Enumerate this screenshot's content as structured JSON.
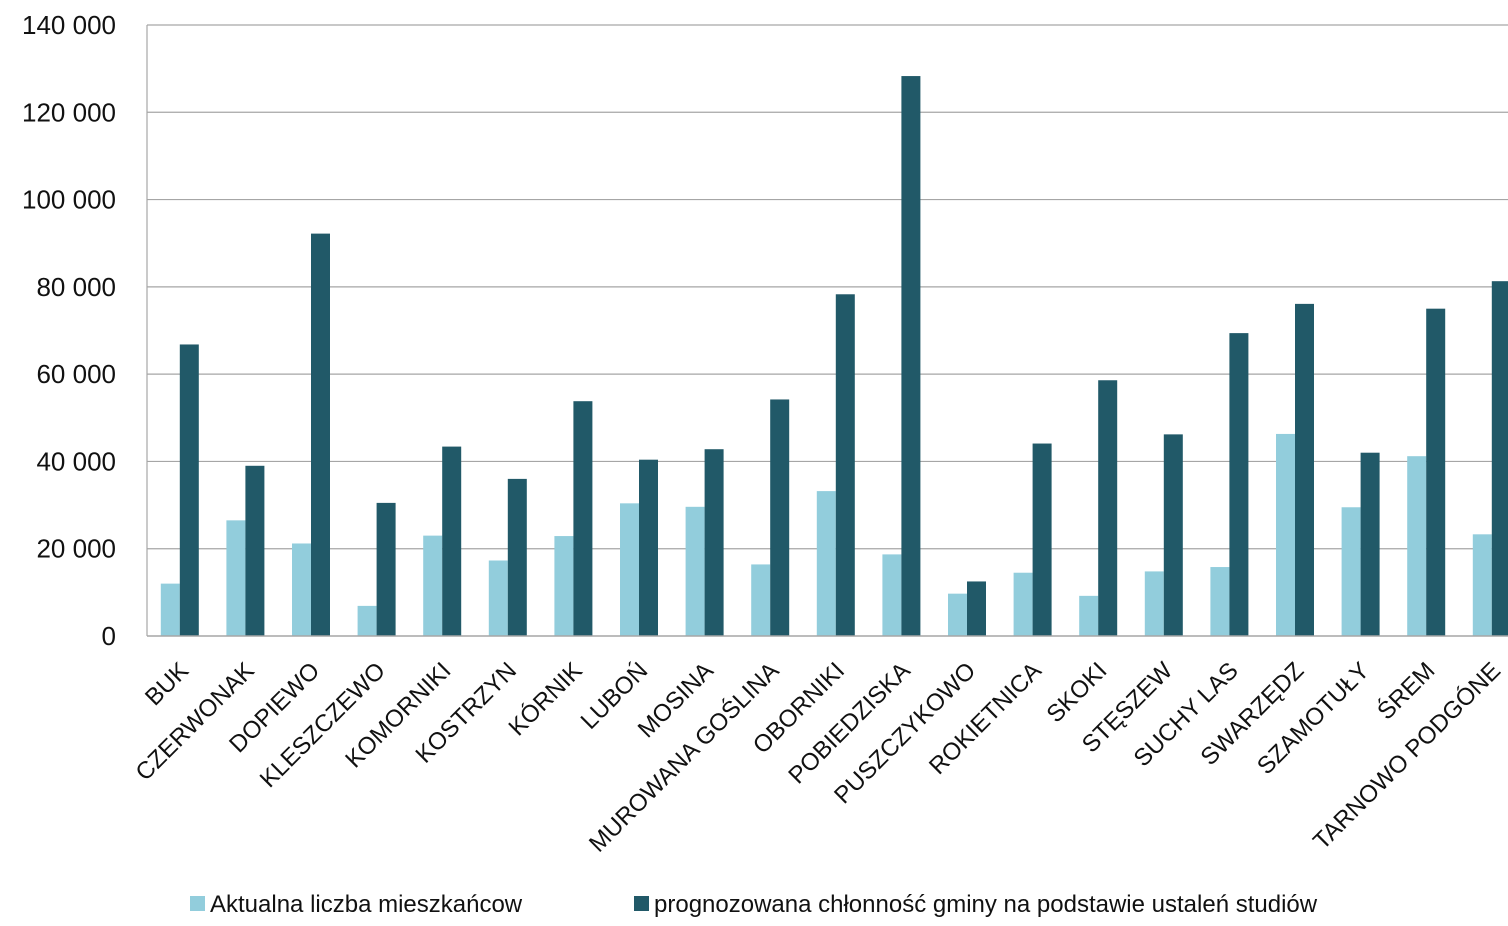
{
  "chart_data": {
    "type": "bar",
    "categories": [
      "BUK",
      "CZERWONAK",
      "DOPIEWO",
      "KLESZCZEWO",
      "KOMORNIKI",
      "KOSTRZYN",
      "KÓRNIK",
      "LUBOŃ",
      "MOSINA",
      "MUROWANA GOŚLINA",
      "OBORNIKI",
      "POBIEDZISKA",
      "PUSZCZYKOWO",
      "ROKIETNICA",
      "SKOKI",
      "STĘSZEW",
      "SUCHY LAS",
      "SWARZĘDZ",
      "SZAMOTUŁY",
      "ŚREM",
      "TARNOWO PODGÓNE"
    ],
    "series": [
      {
        "name": "Aktualna liczba mieszkańcow",
        "color": "#92cddc",
        "values": [
          12000,
          26500,
          21200,
          6900,
          23000,
          17300,
          22900,
          30400,
          29600,
          16400,
          33200,
          18700,
          9700,
          14500,
          9200,
          14800,
          15800,
          46300,
          29500,
          41200,
          23300
        ]
      },
      {
        "name": "prognozowana chłonność gminy na podstawie ustaleń studiów",
        "color": "#215968",
        "values": [
          66800,
          39000,
          92200,
          30500,
          43400,
          36000,
          53800,
          40400,
          42800,
          54200,
          78300,
          128300,
          12500,
          44100,
          58600,
          46200,
          69400,
          76100,
          42000,
          75000,
          81300
        ]
      }
    ],
    "yticks": [
      "0",
      "20 000",
      "40 000",
      "60 000",
      "80 000",
      "100 000",
      "120 000",
      "140 000"
    ],
    "ylim": [
      0,
      140000
    ],
    "grid": true,
    "legend_position": "bottom",
    "title": "",
    "xlabel": "",
    "ylabel": ""
  }
}
